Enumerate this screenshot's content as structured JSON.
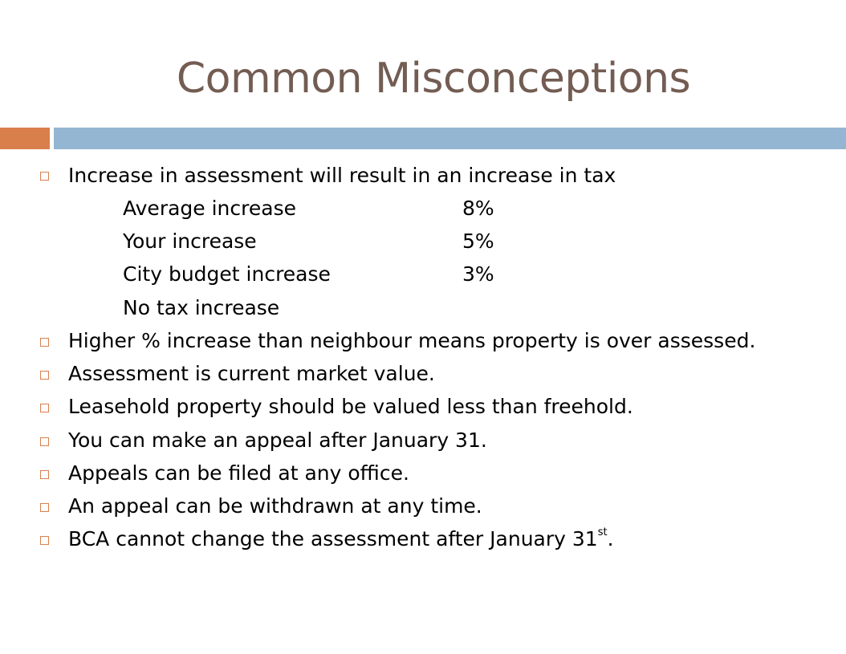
{
  "slide": {
    "title": "Common Misconceptions",
    "colors": {
      "title": "#735c52",
      "accent_orange": "#d97f4c",
      "accent_blue": "#94b6d2"
    },
    "bullet_icon": "hollow-square-bullet-icon",
    "first_point": "Increase in assessment will result in an increase in tax",
    "sub_points": [
      {
        "label": "Average increase",
        "value": "8%"
      },
      {
        "label": "Your increase",
        "value": "5%"
      },
      {
        "label": "City budget increase",
        "value": "3%"
      },
      {
        "label": "No tax increase",
        "value": ""
      }
    ],
    "points": [
      "Higher % increase than neighbour means property is over assessed.",
      "Assessment is current market value.",
      "Leasehold property should be valued less than freehold.",
      "You can make an appeal after January 31.",
      "Appeals can be filed at any office.",
      "An appeal can be withdrawn at any time."
    ],
    "last_point": {
      "text": "BCA cannot change the assessment after January 31",
      "superscript": "st",
      "suffix": "."
    }
  }
}
